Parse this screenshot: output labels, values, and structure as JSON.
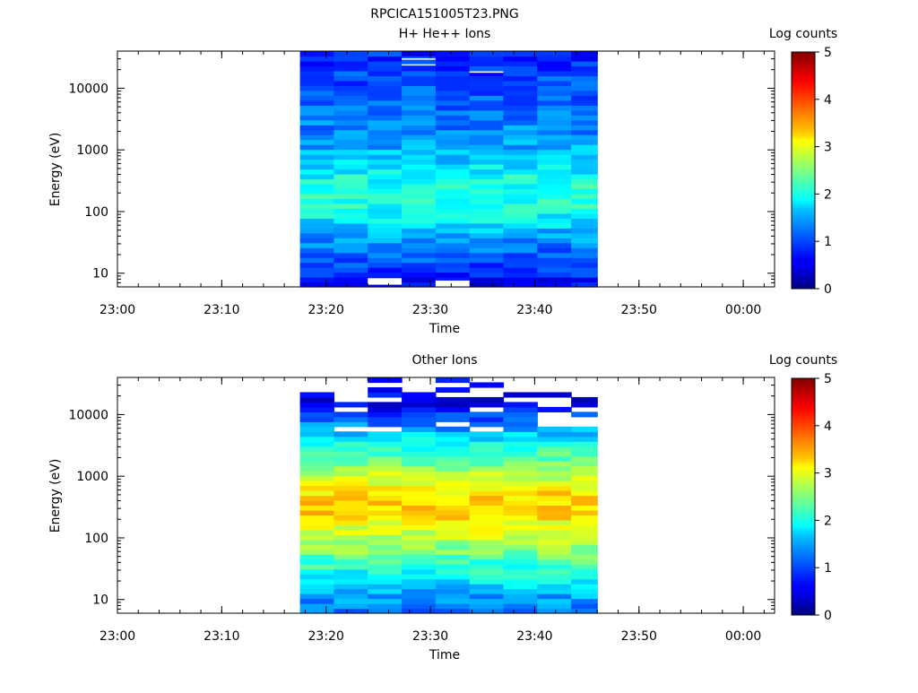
{
  "page": {
    "title": "RPCICA151005T23.PNG"
  },
  "colorbar": {
    "min": 0,
    "max": 5,
    "ticks": [
      "0",
      "1",
      "2",
      "3",
      "4",
      "5"
    ]
  },
  "chart_data": [
    {
      "type": "heatmap",
      "title": "H+ He++ Ions",
      "xlabel": "Time",
      "ylabel": "Energy (eV)",
      "colorbar_label": "Log counts",
      "y_scale": "log",
      "x_range": [
        "23:00",
        "00:03"
      ],
      "y_range": [
        6,
        40000
      ],
      "x_tick_labels": [
        "23:00",
        "23:10",
        "23:20",
        "23:30",
        "23:40",
        "23:50",
        "00:00"
      ],
      "y_tick_labels": [
        "10",
        "100",
        "1000",
        "10000"
      ],
      "time_bins": [
        "23:17:30",
        "23:20:45",
        "23:24:00",
        "23:27:15",
        "23:30:30",
        "23:33:45",
        "23:37:00",
        "23:40:15",
        "23:43:30",
        "23:46:00"
      ],
      "energy_profile": [
        {
          "energy": 7,
          "value": 0.6
        },
        {
          "energy": 10,
          "value": 0.85
        },
        {
          "energy": 15,
          "value": 1.0
        },
        {
          "energy": 25,
          "value": 1.2
        },
        {
          "energy": 40,
          "value": 1.45
        },
        {
          "energy": 70,
          "value": 1.75
        },
        {
          "energy": 120,
          "value": 2.0
        },
        {
          "energy": 200,
          "value": 2.05
        },
        {
          "energy": 350,
          "value": 1.95
        },
        {
          "energy": 600,
          "value": 1.7
        },
        {
          "energy": 1000,
          "value": 1.5
        },
        {
          "energy": 2000,
          "value": 1.3
        },
        {
          "energy": 5000,
          "value": 1.15
        },
        {
          "energy": 12000,
          "value": 1.0
        },
        {
          "energy": 30000,
          "value": 0.85
        },
        {
          "energy": 40000,
          "value": 0.8
        }
      ],
      "gaps": [
        {
          "bin": 2,
          "e_from": 6.5,
          "e_to": 8.3
        },
        {
          "bin": 4,
          "e_from": 5.9,
          "e_to": 7.6
        },
        {
          "bin": 3,
          "e_from": 29000,
          "e_to": 30500
        },
        {
          "bin": 3,
          "e_from": 23500,
          "e_to": 24500
        },
        {
          "bin": 5,
          "e_from": 17800,
          "e_to": 18800
        }
      ]
    },
    {
      "type": "heatmap",
      "title": "Other Ions",
      "xlabel": "Time",
      "ylabel": "Energy (eV)",
      "colorbar_label": "Log counts",
      "y_scale": "log",
      "x_range": [
        "23:00",
        "00:03"
      ],
      "y_range": [
        6,
        40000
      ],
      "x_tick_labels": [
        "23:00",
        "23:10",
        "23:20",
        "23:30",
        "23:40",
        "23:50",
        "00:00"
      ],
      "y_tick_labels": [
        "10",
        "100",
        "1000",
        "10000"
      ],
      "time_bins": [
        "23:17:30",
        "23:20:45",
        "23:24:00",
        "23:27:15",
        "23:30:30",
        "23:33:45",
        "23:37:00",
        "23:40:15",
        "23:43:30",
        "23:46:00"
      ],
      "energy_profile": [
        {
          "energy": 7,
          "value": 1.2
        },
        {
          "energy": 10,
          "value": 1.4
        },
        {
          "energy": 15,
          "value": 1.6
        },
        {
          "energy": 25,
          "value": 1.9
        },
        {
          "energy": 40,
          "value": 2.2
        },
        {
          "energy": 70,
          "value": 2.6
        },
        {
          "energy": 120,
          "value": 2.9
        },
        {
          "energy": 200,
          "value": 3.2
        },
        {
          "energy": 300,
          "value": 3.35
        },
        {
          "energy": 500,
          "value": 3.3
        },
        {
          "energy": 800,
          "value": 3.0
        },
        {
          "energy": 1200,
          "value": 2.7
        },
        {
          "energy": 2000,
          "value": 2.3
        },
        {
          "energy": 3500,
          "value": 1.9
        },
        {
          "energy": 6000,
          "value": 1.4
        },
        {
          "energy": 10000,
          "value": 0.9
        },
        {
          "energy": 15000,
          "value": 0.55
        }
      ],
      "bin_top_energy": [
        35000,
        17000,
        38000,
        24000,
        38000,
        36000,
        30000,
        23000,
        18000
      ]
    }
  ]
}
